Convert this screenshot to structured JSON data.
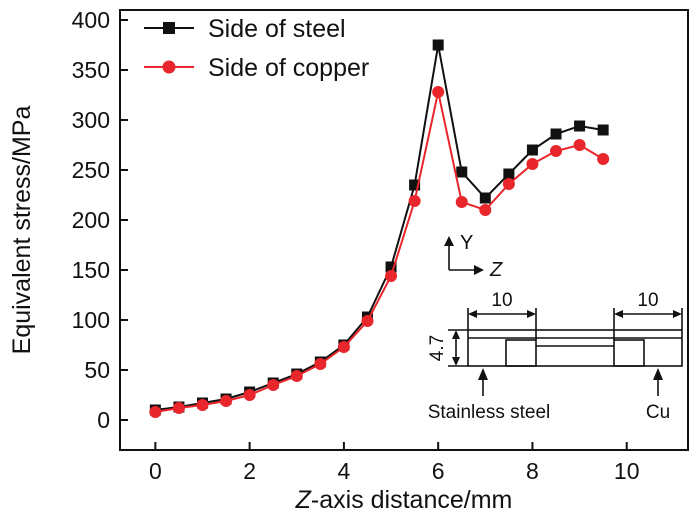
{
  "chart_data": {
    "type": "line",
    "xlabel_italic": "Z",
    "xlabel_rest": "-axis distance/mm",
    "ylabel": "Equivalent stress/MPa",
    "xlim": [
      -0.75,
      11.3
    ],
    "ylim": [
      -30,
      410
    ],
    "xticks": [
      0,
      2,
      4,
      6,
      8,
      10
    ],
    "yticks": [
      0,
      50,
      100,
      150,
      200,
      250,
      300,
      350,
      400
    ],
    "grid": false,
    "legend_position": "top-left",
    "series": [
      {
        "name": "Side of steel",
        "color": "#111111",
        "marker": "square",
        "x": [
          0,
          0.5,
          1,
          1.5,
          2,
          2.5,
          3,
          3.5,
          4,
          4.5,
          5,
          5.5,
          6,
          6.5,
          7,
          7.5,
          8,
          8.5,
          9,
          9.5
        ],
        "y": [
          10,
          13,
          17,
          21,
          28,
          37,
          46,
          58,
          75,
          103,
          153,
          235,
          375,
          248,
          222,
          246,
          270,
          286,
          294,
          290
        ]
      },
      {
        "name": "Side of copper",
        "color": "#e8262b",
        "marker": "circle",
        "x": [
          0,
          0.5,
          1,
          1.5,
          2,
          2.5,
          3,
          3.5,
          4,
          4.5,
          5,
          5.5,
          6,
          6.5,
          7,
          7.5,
          8,
          8.5,
          9,
          9.5
        ],
        "y": [
          8,
          12,
          15,
          19,
          25,
          35,
          44,
          56,
          73,
          99,
          144,
          219,
          328,
          218,
          210,
          236,
          256,
          269,
          275,
          261
        ]
      }
    ],
    "inset": {
      "axis_y": "Y",
      "axis_z": "Z",
      "dim_left": "10",
      "dim_right": "10",
      "dim_height": "4.7",
      "label_left": "Stainless steel",
      "label_right": "Cu"
    }
  }
}
